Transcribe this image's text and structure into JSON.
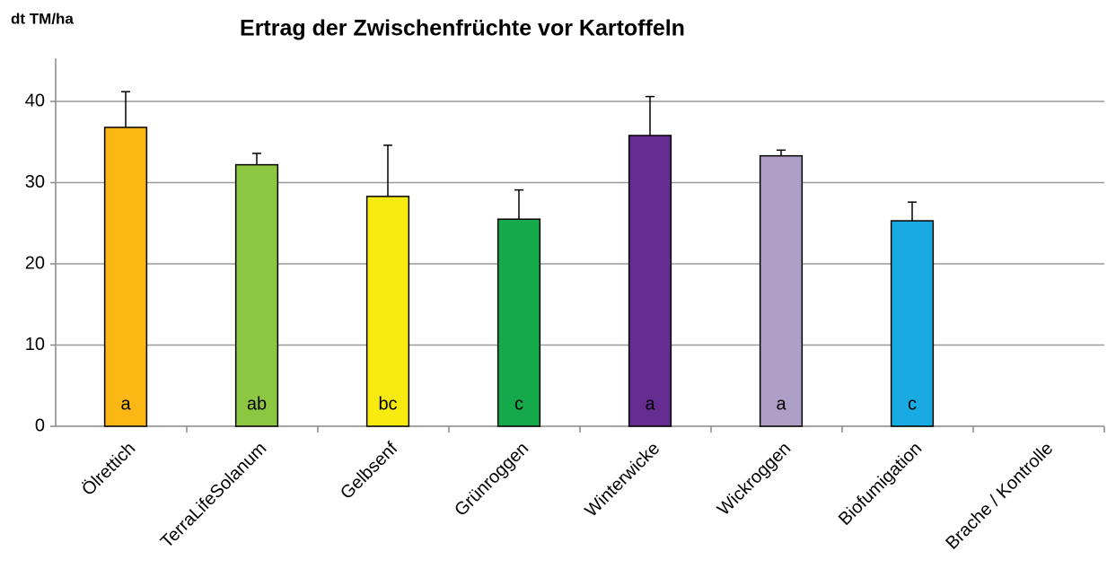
{
  "chart_data": {
    "type": "bar",
    "title": "Ertrag der Zwischenfrüchte vor Kartoffeln",
    "y_label": "dt TM/ha",
    "categories": [
      "Ölrettich",
      "TerraLifeSolanum",
      "Gelbsenf",
      "Grünroggen",
      "Winterwicke",
      "Wickroggen",
      "Biofumigation",
      "Brache / Kontrolle"
    ],
    "values": [
      36.8,
      32.2,
      28.3,
      25.5,
      35.8,
      33.3,
      25.3,
      null
    ],
    "errors": [
      4.4,
      1.4,
      6.3,
      3.6,
      4.8,
      0.7,
      2.3,
      null
    ],
    "letters": [
      "a",
      "ab",
      "bc",
      "c",
      "a",
      "a",
      "c",
      null
    ],
    "colors": [
      "#fbb714",
      "#8dc641",
      "#f6ea0f",
      "#15a94b",
      "#652d90",
      "#ae9fc6",
      "#19aae1",
      "#cccccc"
    ],
    "ylim": [
      0,
      40
    ],
    "yticks": [
      0,
      10,
      20,
      30,
      40
    ],
    "grid": true
  }
}
